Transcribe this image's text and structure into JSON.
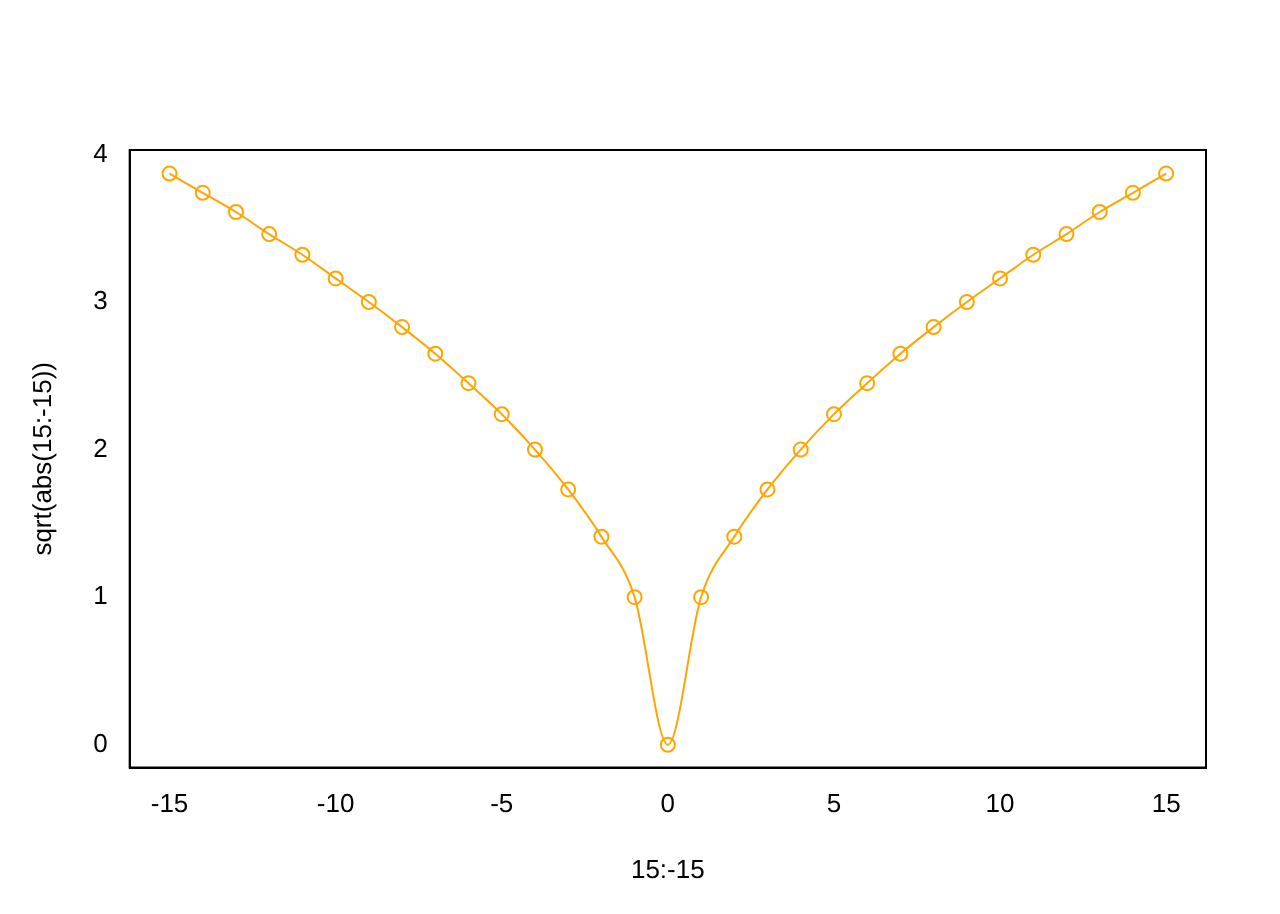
{
  "chart_data": {
    "type": "line",
    "xlabel": "15:-15",
    "ylabel": "sqrt(abs(15:-15))",
    "x": [
      -15,
      -14,
      -13,
      -12,
      -11,
      -10,
      -9,
      -8,
      -7,
      -6,
      -5,
      -4,
      -3,
      -2,
      -1,
      0,
      1,
      2,
      3,
      4,
      5,
      6,
      7,
      8,
      9,
      10,
      11,
      12,
      13,
      14,
      15
    ],
    "series": [
      {
        "color": "#ffa500",
        "values": [
          3.87,
          3.74,
          3.61,
          3.46,
          3.32,
          3.16,
          3,
          2.83,
          2.65,
          2.45,
          2.24,
          2,
          1.73,
          1.41,
          1,
          0,
          1,
          1.41,
          1.73,
          2,
          2.24,
          2.45,
          2.65,
          2.83,
          3,
          3.16,
          3.32,
          3.46,
          3.61,
          3.74,
          3.87
        ]
      }
    ],
    "xlim": [
      -16.2,
      16.2
    ],
    "xticks": [
      -15,
      -10,
      -5,
      0,
      5,
      10,
      15
    ],
    "ylim": [
      -0.155,
      4.03
    ],
    "yticks": [
      0,
      1,
      2,
      3,
      4
    ],
    "marker": "circle",
    "grid": false,
    "legend": false
  }
}
